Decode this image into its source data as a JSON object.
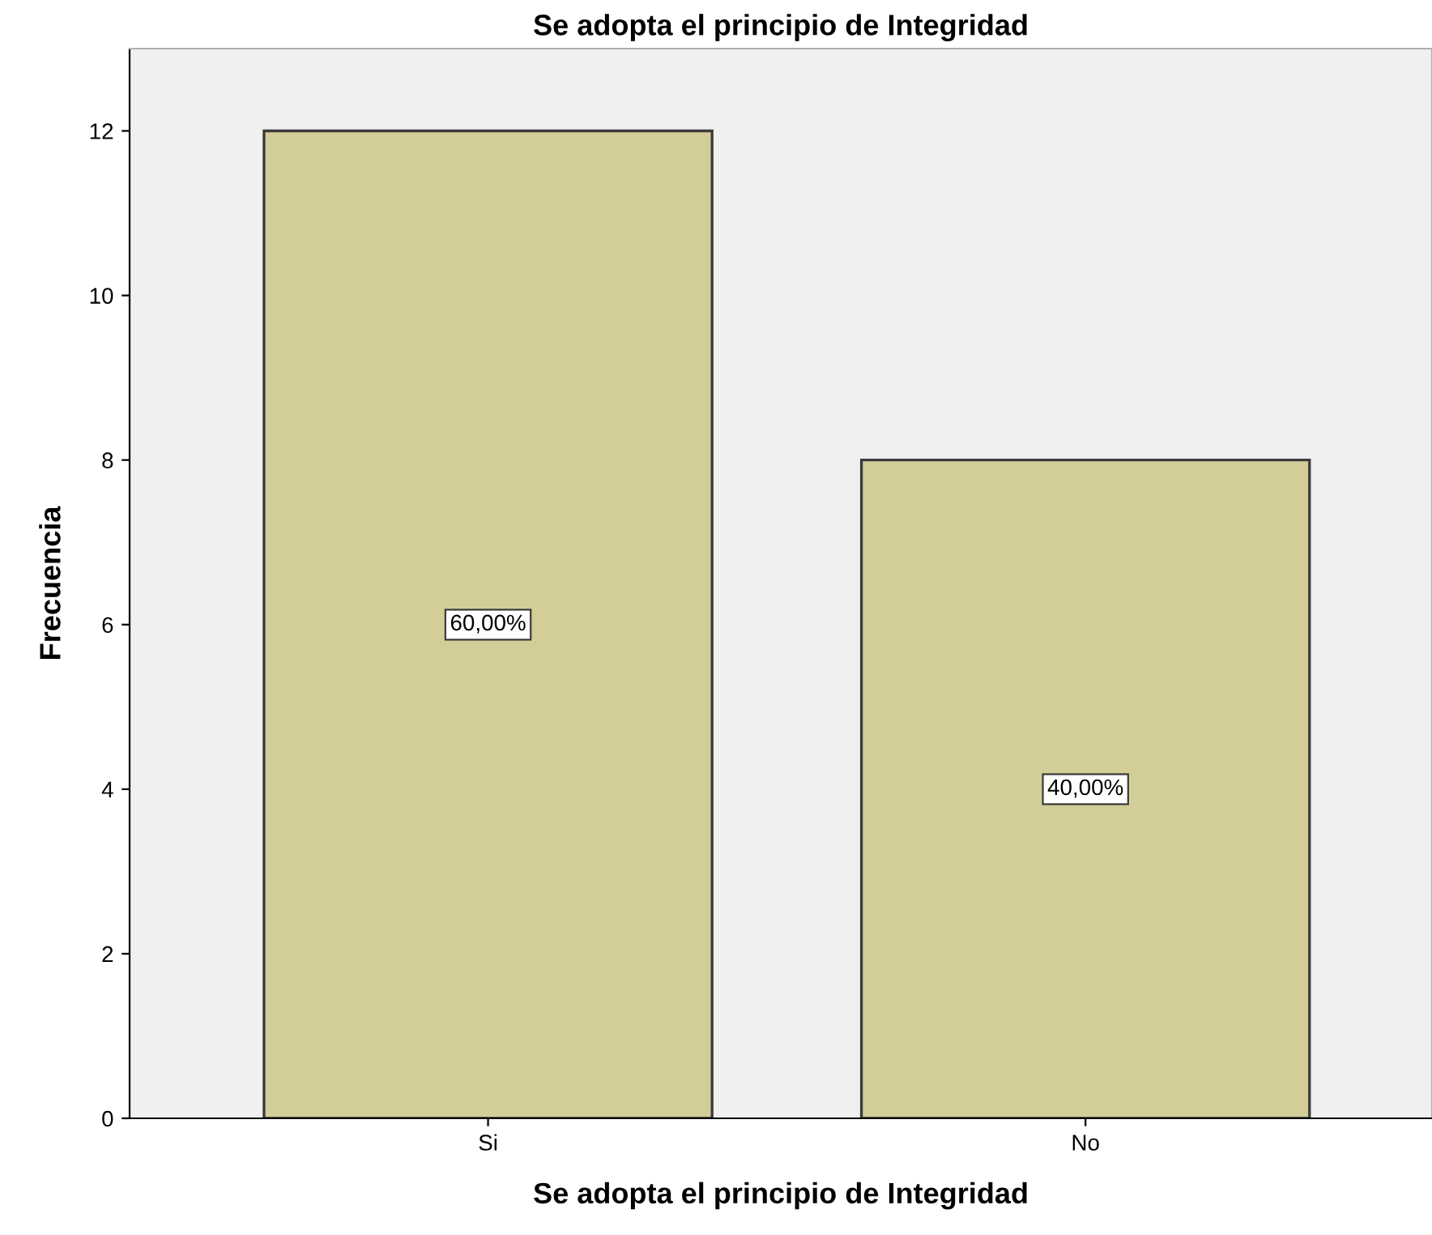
{
  "chart_data": {
    "type": "bar",
    "title": "Se adopta el principio de Integridad",
    "xlabel": "Se adopta el principio de Integridad",
    "ylabel": "Frecuencia",
    "categories": [
      "Si",
      "No"
    ],
    "values": [
      12,
      8
    ],
    "color": "#d3ce98",
    "annotations": [
      "60,00%",
      "40,00%"
    ],
    "ylim": [
      0,
      13
    ],
    "yticks": [
      0,
      2,
      4,
      6,
      8,
      10,
      12
    ],
    "grid": false
  }
}
